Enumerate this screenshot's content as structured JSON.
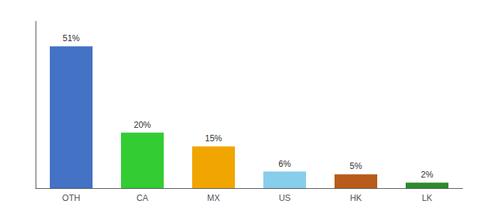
{
  "chart_data": {
    "type": "bar",
    "categories": [
      "OTH",
      "CA",
      "MX",
      "US",
      "HK",
      "LK"
    ],
    "values": [
      51,
      20,
      15,
      6,
      5,
      2
    ],
    "value_labels": [
      "51%",
      "20%",
      "15%",
      "6%",
      "5%",
      "2%"
    ],
    "colors": [
      "#4472c4",
      "#33cc33",
      "#f0a500",
      "#87ceeb",
      "#b85c1a",
      "#2d8a2d"
    ],
    "data_labels": true,
    "ylim": [
      0,
      60
    ],
    "grid": false,
    "tick_labels": "x"
  }
}
